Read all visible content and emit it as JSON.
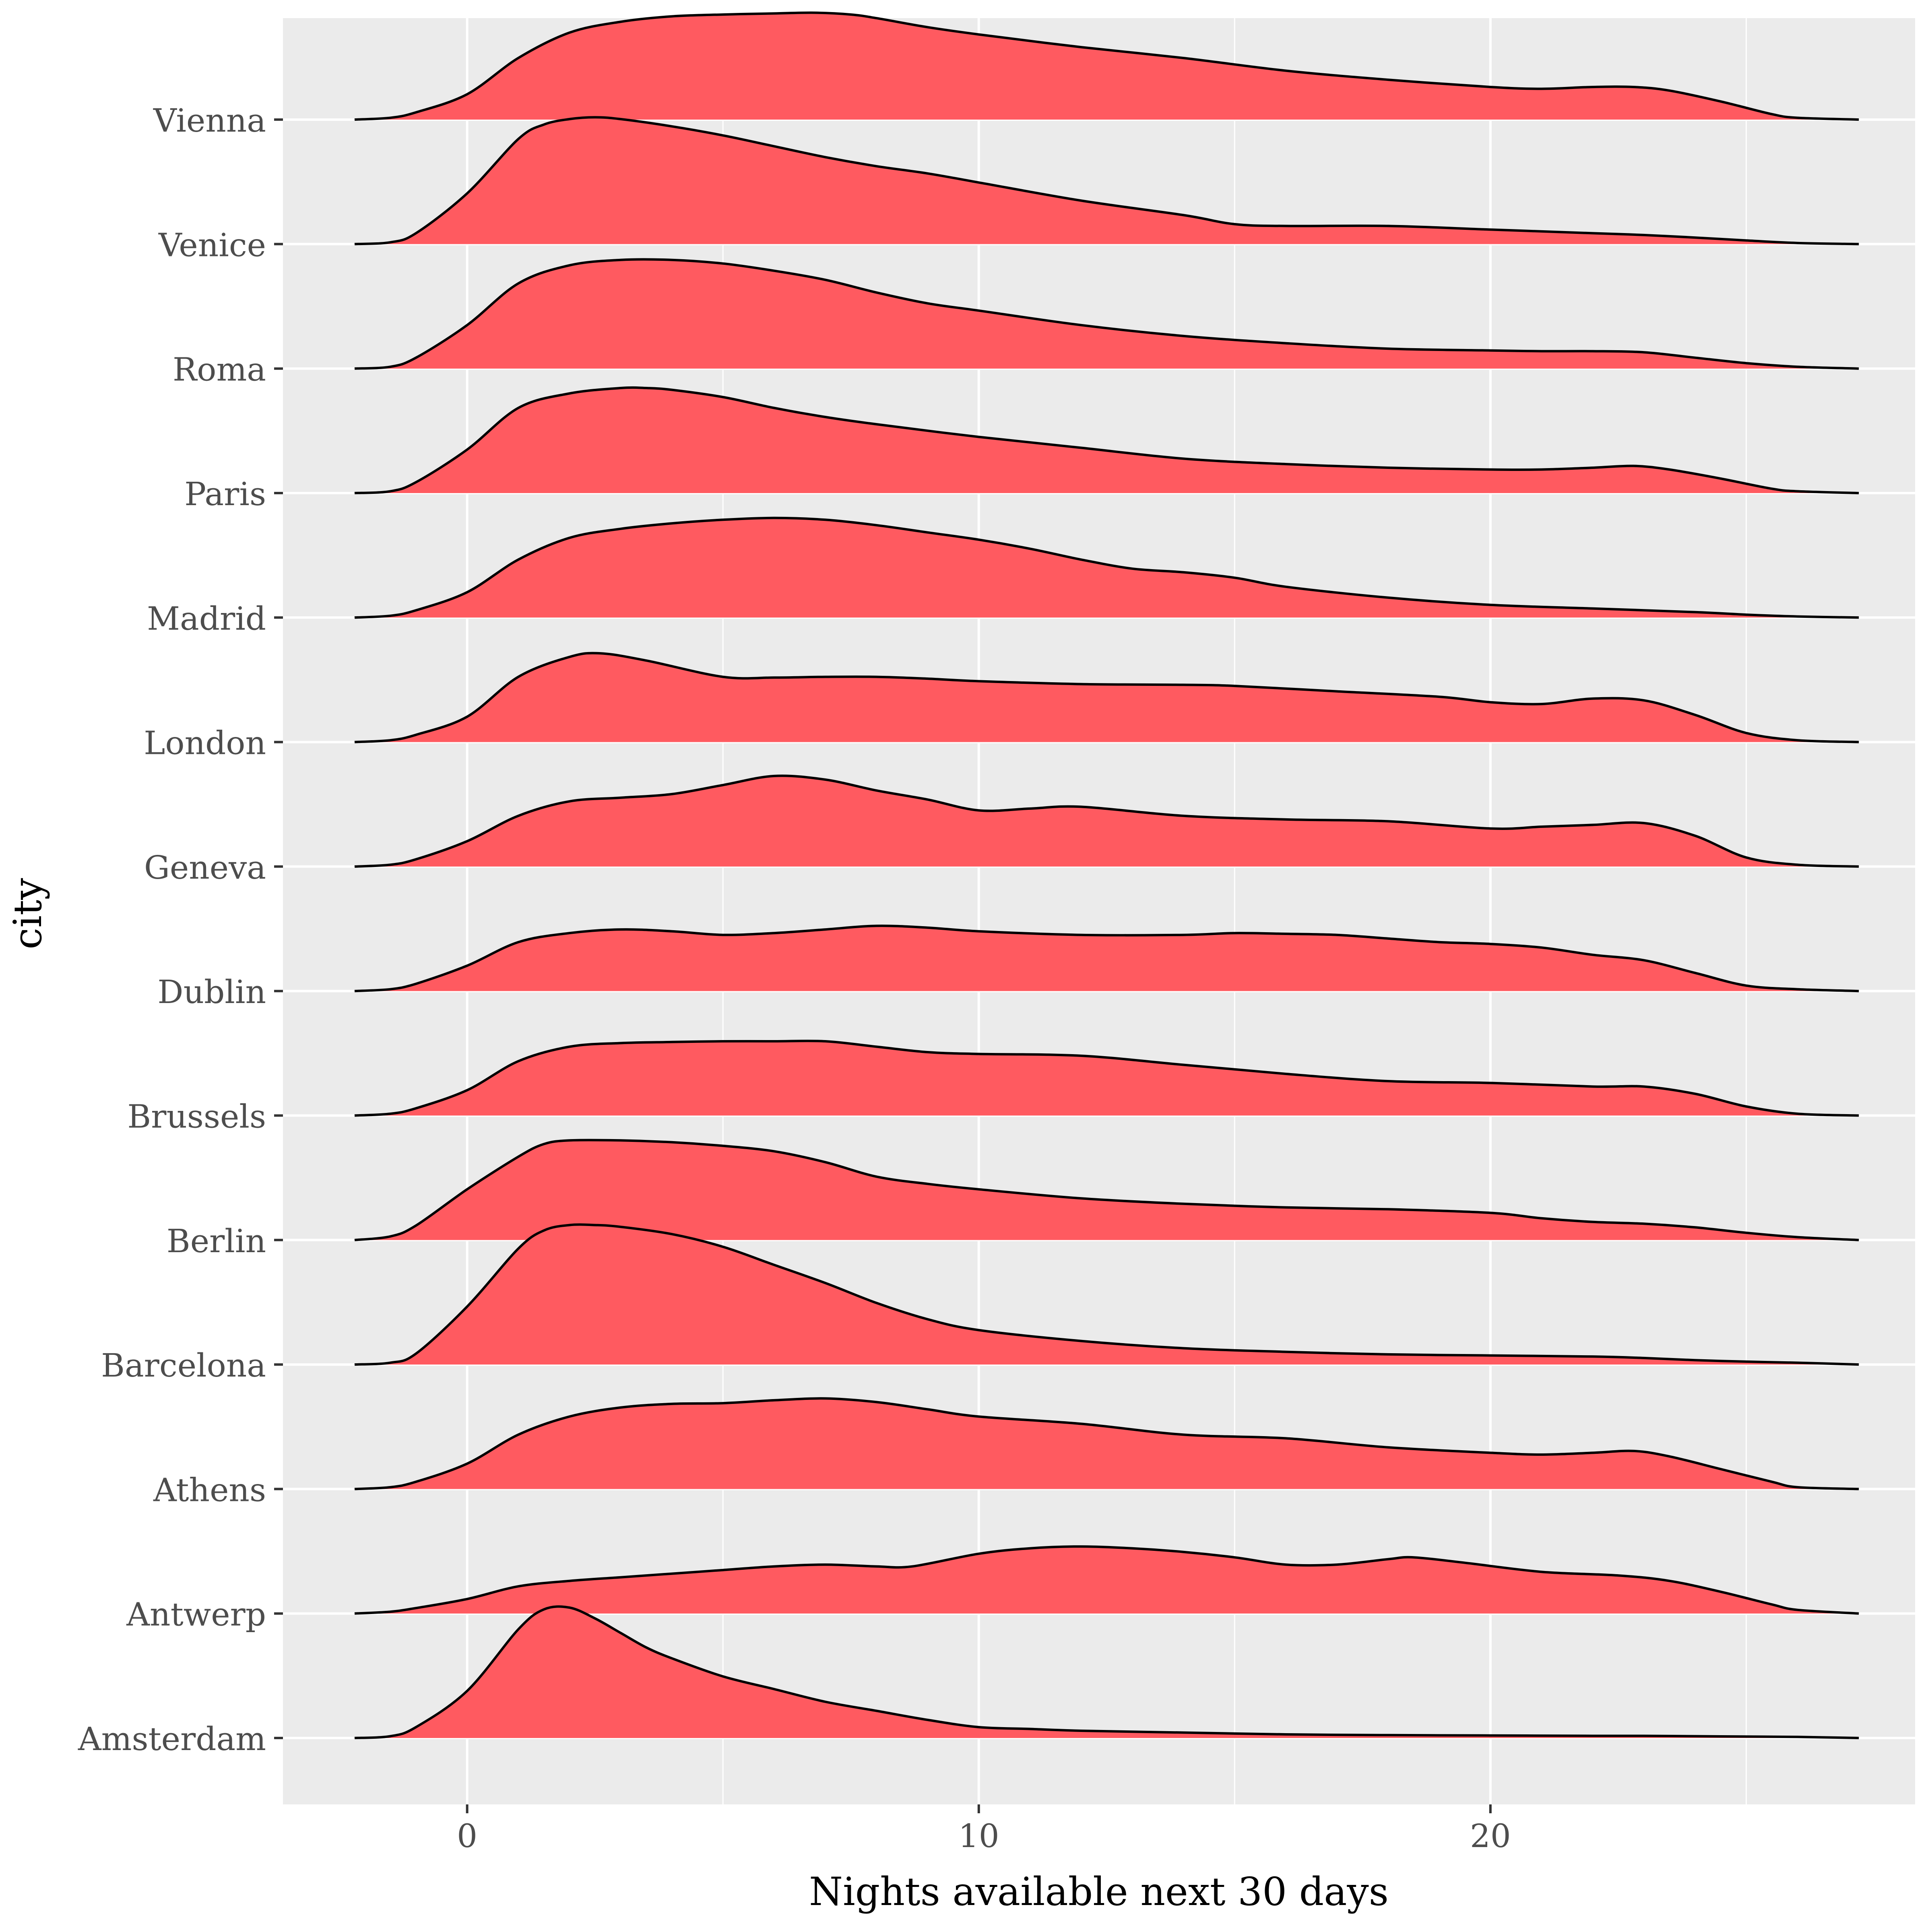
{
  "chart_data": {
    "type": "ridgeline",
    "xlabel": "Nights available next 30 days",
    "ylabel": "city",
    "xlim": [
      -3.6,
      28.3
    ],
    "x_ticks": [
      0,
      10,
      20
    ],
    "x_minor_ticks": [
      5,
      15,
      25
    ],
    "density_range": [
      -2.2,
      27.2
    ],
    "ridge_scale": 0.00286,
    "grid": true,
    "legend": "none",
    "fill_color": "#ff5a60",
    "line_color": "#000000",
    "panel_color": "#ebebeb",
    "grid_color": "#ffffff",
    "series": [
      {
        "name": "Amsterdam",
        "x": [
          -2.2,
          -1.5,
          -1.0,
          0.0,
          1.0,
          1.5,
          2.0,
          2.5,
          3.0,
          3.5,
          4.0,
          5.0,
          6.0,
          7.0,
          8.0,
          9.0,
          10.0,
          11.0,
          12.0,
          14.0,
          16.0,
          18.0,
          20.0,
          22.0,
          23.0,
          24.0,
          25.0,
          26.0,
          27.2
        ],
        "y": [
          0.0,
          5.0,
          30.0,
          130.0,
          300.0,
          355.0,
          360.0,
          330.0,
          290.0,
          250.0,
          220.0,
          170.0,
          135.0,
          100.0,
          75.0,
          50.0,
          30.0,
          25.0,
          20.0,
          15.0,
          10.0,
          8.0,
          7.0,
          6.0,
          6.0,
          5.0,
          4.0,
          3.0,
          0.0
        ]
      },
      {
        "name": "Antwerp",
        "x": [
          -2.2,
          -1.5,
          -1.0,
          0.0,
          1.0,
          2.0,
          3.0,
          4.0,
          5.0,
          6.0,
          7.0,
          8.0,
          8.7,
          10.0,
          11.0,
          12.0,
          13.0,
          14.0,
          15.0,
          16.0,
          17.0,
          18.0,
          18.5,
          19.5,
          21.0,
          22.5,
          23.5,
          24.5,
          25.5,
          26.0,
          27.2
        ],
        "y": [
          0.0,
          5.0,
          15.0,
          40.0,
          75.0,
          90.0,
          100.0,
          110.0,
          120.0,
          130.0,
          135.0,
          130.0,
          130.0,
          165.0,
          180.0,
          185.0,
          180.0,
          170.0,
          155.0,
          135.0,
          135.0,
          150.0,
          155.0,
          140.0,
          115.0,
          105.0,
          90.0,
          60.0,
          25.0,
          10.0,
          0.0
        ]
      },
      {
        "name": "Athens",
        "x": [
          -2.2,
          -1.5,
          -1.0,
          0.0,
          1.0,
          2.0,
          3.0,
          4.0,
          5.0,
          6.0,
          7.0,
          8.0,
          9.0,
          10.0,
          12.0,
          14.0,
          16.0,
          18.0,
          20.0,
          21.0,
          22.0,
          22.8,
          23.5,
          24.5,
          25.5,
          26.0,
          27.2
        ],
        "y": [
          0.0,
          5.0,
          20.0,
          70.0,
          150.0,
          200.0,
          225.0,
          235.0,
          237.0,
          245.0,
          250.0,
          240.0,
          220.0,
          200.0,
          180.0,
          150.0,
          140.0,
          115.0,
          100.0,
          95.0,
          100.0,
          105.0,
          90.0,
          55.0,
          20.0,
          5.0,
          0.0
        ]
      },
      {
        "name": "Barcelona",
        "x": [
          -2.2,
          -1.5,
          -1.0,
          0.0,
          1.0,
          1.5,
          2.0,
          2.5,
          3.0,
          4.0,
          5.0,
          6.0,
          7.0,
          8.0,
          9.0,
          10.0,
          12.0,
          14.0,
          16.0,
          18.0,
          20.0,
          22.0,
          23.0,
          24.0,
          25.0,
          26.0,
          27.2
        ],
        "y": [
          0.0,
          5.0,
          30.0,
          160.0,
          320.0,
          370.0,
          385.0,
          385.0,
          380.0,
          360.0,
          325.0,
          275.0,
          225.0,
          170.0,
          125.0,
          95.0,
          65.0,
          45.0,
          35.0,
          28.0,
          25.0,
          22.0,
          18.0,
          12.0,
          8.0,
          5.0,
          0.0
        ]
      },
      {
        "name": "Berlin",
        "x": [
          -2.2,
          -1.5,
          -1.0,
          0.0,
          1.0,
          1.5,
          2.0,
          3.0,
          4.0,
          5.0,
          6.0,
          7.0,
          8.0,
          9.0,
          10.0,
          12.0,
          14.0,
          16.0,
          18.0,
          20.0,
          21.0,
          22.0,
          23.0,
          24.0,
          25.0,
          26.0,
          27.2
        ],
        "y": [
          0.0,
          10.0,
          40.0,
          140.0,
          230.0,
          265.0,
          275.0,
          275.0,
          270.0,
          260.0,
          245.0,
          215.0,
          175.0,
          155.0,
          140.0,
          115.0,
          100.0,
          90.0,
          85.0,
          75.0,
          60.0,
          50.0,
          45.0,
          35.0,
          20.0,
          8.0,
          0.0
        ]
      },
      {
        "name": "Brussels",
        "x": [
          -2.2,
          -1.5,
          -1.0,
          0.0,
          1.0,
          2.0,
          3.0,
          4.0,
          5.0,
          6.0,
          7.0,
          8.0,
          9.0,
          10.0,
          12.0,
          14.0,
          16.0,
          18.0,
          20.0,
          22.0,
          23.0,
          24.0,
          25.0,
          26.0,
          27.2
        ],
        "y": [
          0.0,
          5.0,
          20.0,
          70.0,
          150.0,
          190.0,
          200.0,
          203.0,
          205.0,
          205.0,
          205.0,
          190.0,
          175.0,
          170.0,
          165.0,
          140.0,
          115.0,
          95.0,
          90.0,
          80.0,
          80.0,
          60.0,
          25.0,
          5.0,
          0.0
        ]
      },
      {
        "name": "Dublin",
        "x": [
          -2.2,
          -1.5,
          -1.0,
          0.0,
          1.0,
          2.0,
          3.0,
          4.0,
          5.0,
          6.0,
          7.0,
          8.0,
          9.0,
          10.0,
          12.0,
          14.0,
          15.0,
          16.0,
          17.0,
          18.0,
          19.0,
          20.0,
          21.0,
          22.0,
          23.0,
          24.0,
          25.0,
          26.0,
          27.2
        ],
        "y": [
          0.0,
          5.0,
          20.0,
          70.0,
          135.0,
          160.0,
          170.0,
          165.0,
          155.0,
          160.0,
          170.0,
          180.0,
          175.0,
          165.0,
          155.0,
          155.0,
          160.0,
          158.0,
          155.0,
          145.0,
          135.0,
          130.0,
          120.0,
          100.0,
          85.0,
          50.0,
          15.0,
          5.0,
          0.0
        ]
      },
      {
        "name": "Geneva",
        "x": [
          -2.2,
          -1.5,
          -1.0,
          0.0,
          1.0,
          2.0,
          3.0,
          4.0,
          5.0,
          6.0,
          7.0,
          8.0,
          9.0,
          10.0,
          11.0,
          12.0,
          14.0,
          16.0,
          18.0,
          20.0,
          21.0,
          22.0,
          23.0,
          24.0,
          25.0,
          26.0,
          27.2
        ],
        "y": [
          0.0,
          5.0,
          20.0,
          70.0,
          140.0,
          180.0,
          190.0,
          200.0,
          225.0,
          250.0,
          240.0,
          210.0,
          185.0,
          155.0,
          160.0,
          165.0,
          140.0,
          130.0,
          125.0,
          105.0,
          110.0,
          115.0,
          120.0,
          85.0,
          25.0,
          5.0,
          0.0
        ]
      },
      {
        "name": "London",
        "x": [
          -2.2,
          -1.5,
          -1.0,
          0.0,
          1.0,
          2.0,
          2.6,
          3.5,
          5.0,
          6.0,
          7.0,
          8.0,
          9.0,
          10.0,
          12.0,
          14.0,
          15.0,
          17.0,
          19.0,
          20.0,
          21.0,
          22.0,
          23.0,
          24.0,
          25.0,
          26.0,
          27.2
        ],
        "y": [
          0.0,
          5.0,
          20.0,
          70.0,
          180.0,
          235.0,
          245.0,
          225.0,
          180.0,
          178.0,
          180.0,
          180.0,
          175.0,
          168.0,
          160.0,
          158.0,
          155.0,
          140.0,
          125.0,
          110.0,
          105.0,
          120.0,
          115.0,
          75.0,
          25.0,
          5.0,
          0.0
        ]
      },
      {
        "name": "Madrid",
        "x": [
          -2.2,
          -1.5,
          -1.0,
          0.0,
          1.0,
          2.0,
          3.0,
          4.0,
          5.0,
          6.0,
          7.0,
          8.0,
          9.0,
          10.0,
          11.0,
          12.0,
          13.0,
          14.0,
          15.0,
          16.0,
          18.0,
          20.0,
          22.0,
          24.0,
          25.0,
          26.0,
          27.2
        ],
        "y": [
          0.0,
          5.0,
          20.0,
          70.0,
          160.0,
          220.0,
          245.0,
          260.0,
          270.0,
          275.0,
          270.0,
          255.0,
          235.0,
          215.0,
          190.0,
          160.0,
          135.0,
          125.0,
          110.0,
          85.0,
          55.0,
          35.0,
          25.0,
          15.0,
          8.0,
          3.0,
          0.0
        ]
      },
      {
        "name": "Paris",
        "x": [
          -2.2,
          -1.5,
          -1.0,
          0.0,
          1.0,
          2.0,
          3.0,
          3.5,
          4.0,
          5.0,
          6.0,
          7.0,
          8.0,
          10.0,
          12.0,
          14.0,
          16.0,
          18.0,
          20.0,
          21.0,
          22.0,
          22.8,
          23.5,
          24.5,
          25.5,
          26.0,
          27.2
        ],
        "y": [
          0.0,
          5.0,
          30.0,
          120.0,
          235.0,
          275.0,
          290.0,
          290.0,
          285.0,
          265.0,
          235.0,
          210.0,
          190.0,
          155.0,
          125.0,
          95.0,
          80.0,
          70.0,
          65.0,
          65.0,
          70.0,
          75.0,
          65.0,
          40.0,
          12.0,
          5.0,
          0.0
        ]
      },
      {
        "name": "Roma",
        "x": [
          -2.2,
          -1.5,
          -1.0,
          0.0,
          1.0,
          2.0,
          3.0,
          4.0,
          5.0,
          6.0,
          7.0,
          8.0,
          9.0,
          10.0,
          12.0,
          14.0,
          16.0,
          18.0,
          20.0,
          21.0,
          22.0,
          23.0,
          24.0,
          25.0,
          26.0,
          27.2
        ],
        "y": [
          0.0,
          5.0,
          30.0,
          120.0,
          235.0,
          285.0,
          300.0,
          300.0,
          290.0,
          270.0,
          245.0,
          210.0,
          180.0,
          160.0,
          120.0,
          90.0,
          70.0,
          55.0,
          50.0,
          48.0,
          48.0,
          45.0,
          30.0,
          15.0,
          5.0,
          0.0
        ]
      },
      {
        "name": "Venice",
        "x": [
          -2.2,
          -1.5,
          -1.0,
          0.0,
          1.0,
          1.5,
          2.0,
          2.5,
          3.0,
          4.0,
          5.0,
          6.0,
          7.0,
          8.0,
          9.0,
          10.0,
          12.0,
          14.0,
          15.0,
          16.0,
          18.0,
          20.0,
          22.0,
          23.0,
          24.0,
          25.0,
          26.0,
          27.2
        ],
        "y": [
          0.0,
          5.0,
          30.0,
          140.0,
          290.0,
          330.0,
          345.0,
          350.0,
          345.0,
          325.0,
          300.0,
          270.0,
          240.0,
          215.0,
          195.0,
          170.0,
          120.0,
          80.0,
          55.0,
          50.0,
          50.0,
          40.0,
          30.0,
          25.0,
          18.0,
          10.0,
          3.0,
          0.0
        ]
      },
      {
        "name": "Vienna",
        "x": [
          -2.2,
          -1.5,
          -1.0,
          0.0,
          1.0,
          2.0,
          3.0,
          4.0,
          5.0,
          6.0,
          6.8,
          7.5,
          8.0,
          9.0,
          10.0,
          12.0,
          14.0,
          16.0,
          18.0,
          20.0,
          21.0,
          22.0,
          22.8,
          23.5,
          24.5,
          25.5,
          26.0,
          27.2
        ],
        "y": [
          0.0,
          5.0,
          20.0,
          70.0,
          170.0,
          240.0,
          270.0,
          285.0,
          290.0,
          293.0,
          295.0,
          290.0,
          280.0,
          255.0,
          235.0,
          200.0,
          170.0,
          135.0,
          110.0,
          90.0,
          85.0,
          90.0,
          90.0,
          80.0,
          50.0,
          15.0,
          5.0,
          0.0
        ]
      }
    ]
  }
}
